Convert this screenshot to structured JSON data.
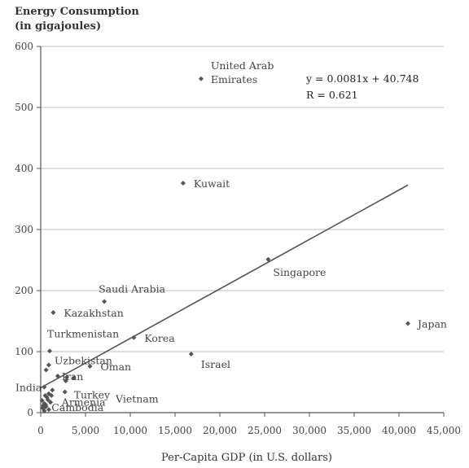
{
  "chart_data": {
    "type": "scatter",
    "ylabel_lines": [
      "Energy Consumption",
      "(in gigajoules)"
    ],
    "xlabel": "Per-Capita GDP (in U.S. dollars)",
    "xlim": [
      0,
      45000
    ],
    "ylim": [
      0,
      600
    ],
    "xticks": [
      0,
      5000,
      10000,
      15000,
      20000,
      25000,
      30000,
      35000,
      40000,
      45000
    ],
    "xtick_labels": [
      "0",
      "5,000",
      "10,000",
      "15,000",
      "20,000",
      "25,000",
      "30,000",
      "35,000",
      "40,000",
      "45,000"
    ],
    "yticks": [
      0,
      100,
      200,
      300,
      400,
      500,
      600
    ],
    "ytick_labels": [
      "0",
      "100",
      "200",
      "300",
      "400",
      "500",
      "600"
    ],
    "grid": "horizontal",
    "equation_lines": [
      "y = 0.0081x + 40.748",
      "R = 0.621"
    ],
    "trendline": {
      "slope": 0.0081,
      "intercept": 40.748,
      "x_range": [
        0,
        41000
      ]
    },
    "marker_color": "#555555",
    "labeled_points": [
      {
        "label_lines": [
          "United Arab",
          "Emirates"
        ],
        "x": 17900,
        "y": 547
      },
      {
        "label_lines": [
          "Kuwait"
        ],
        "x": 15900,
        "y": 376
      },
      {
        "label_lines": [
          "Singapore"
        ],
        "x": 25400,
        "y": 251
      },
      {
        "label_lines": [
          "Saudi Arabia"
        ],
        "x": 7100,
        "y": 182
      },
      {
        "label_lines": [
          "Kazakhstan"
        ],
        "x": 1400,
        "y": 164
      },
      {
        "label_lines": [
          "Korea"
        ],
        "x": 10400,
        "y": 123
      },
      {
        "label_lines": [
          "Japan"
        ],
        "x": 41000,
        "y": 146
      },
      {
        "label_lines": [
          "Israel"
        ],
        "x": 16800,
        "y": 96
      },
      {
        "label_lines": [
          "Turkmenistan"
        ],
        "x": 1000,
        "y": 101
      },
      {
        "label_lines": [
          "Uzbekistan"
        ],
        "x": 900,
        "y": 78
      },
      {
        "label_lines": [
          "Iran"
        ],
        "x": 1900,
        "y": 60
      },
      {
        "label_lines": [
          "Oman"
        ],
        "x": 5500,
        "y": 76
      },
      {
        "label_lines": [
          "India"
        ],
        "x": 400,
        "y": 42
      },
      {
        "label_lines": [
          "Turkey"
        ],
        "x": 2700,
        "y": 34
      },
      {
        "label_lines": [
          "Armenia"
        ],
        "x": 800,
        "y": 21
      },
      {
        "label_lines": [
          "Cambodia"
        ],
        "x": 300,
        "y": 7
      },
      {
        "label_lines": [
          "Vietnam"
        ],
        "x": 550,
        "y": 13
      }
    ],
    "other_points": [
      {
        "x": 600,
        "y": 70
      },
      {
        "x": 2900,
        "y": 58
      },
      {
        "x": 3700,
        "y": 57
      },
      {
        "x": 2800,
        "y": 52
      },
      {
        "x": 1300,
        "y": 37
      },
      {
        "x": 1200,
        "y": 28
      },
      {
        "x": 900,
        "y": 31
      },
      {
        "x": 500,
        "y": 28
      },
      {
        "x": 700,
        "y": 25
      },
      {
        "x": 1100,
        "y": 17
      },
      {
        "x": 400,
        "y": 15
      },
      {
        "x": 300,
        "y": 12
      },
      {
        "x": 600,
        "y": 10
      },
      {
        "x": 200,
        "y": 8
      },
      {
        "x": 900,
        "y": 5
      },
      {
        "x": 400,
        "y": 3
      },
      {
        "x": 150,
        "y": 20
      }
    ]
  }
}
